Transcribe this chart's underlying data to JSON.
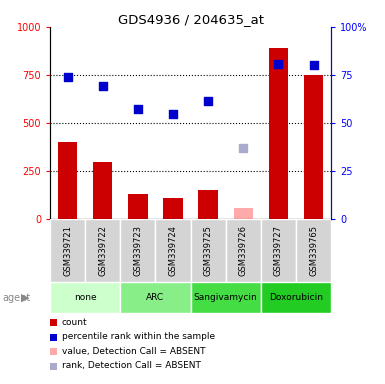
{
  "title": "GDS4936 / 204635_at",
  "samples": [
    "GSM339721",
    "GSM339722",
    "GSM339723",
    "GSM339724",
    "GSM339725",
    "GSM339726",
    "GSM339727",
    "GSM339765"
  ],
  "bar_values": [
    400,
    295,
    130,
    110,
    150,
    null,
    890,
    750
  ],
  "bar_absent_values": [
    null,
    null,
    null,
    null,
    null,
    55,
    null,
    null
  ],
  "percentile_present": [
    74.0,
    69.0,
    57.0,
    54.5,
    61.5,
    null,
    80.5,
    80.0
  ],
  "percentile_absent": [
    null,
    null,
    null,
    null,
    null,
    37.0,
    null,
    null
  ],
  "bar_present_color": "#cc0000",
  "bar_absent_color": "#ffaaaa",
  "dot_present_color": "#0000cc",
  "dot_absent_color": "#aaaacc",
  "agent_groups": [
    {
      "label": "none",
      "start": 0,
      "end": 2,
      "color": "#ccffcc"
    },
    {
      "label": "ARC",
      "start": 2,
      "end": 4,
      "color": "#88ee88"
    },
    {
      "label": "Sangivamycin",
      "start": 4,
      "end": 6,
      "color": "#44dd44"
    },
    {
      "label": "Doxorubicin",
      "start": 6,
      "end": 8,
      "color": "#22cc22"
    }
  ],
  "ylim_left": [
    0,
    1000
  ],
  "ylim_right": [
    0,
    100
  ],
  "yticks_left": [
    0,
    250,
    500,
    750,
    1000
  ],
  "ytick_labels_left": [
    "0",
    "250",
    "500",
    "750",
    "1000"
  ],
  "ytick_labels_right": [
    "0",
    "25",
    "50",
    "75",
    "100%"
  ],
  "legend_items": [
    {
      "label": "count",
      "color": "#cc0000"
    },
    {
      "label": "percentile rank within the sample",
      "color": "#0000cc"
    },
    {
      "label": "value, Detection Call = ABSENT",
      "color": "#ffaaaa"
    },
    {
      "label": "rank, Detection Call = ABSENT",
      "color": "#aaaacc"
    }
  ]
}
